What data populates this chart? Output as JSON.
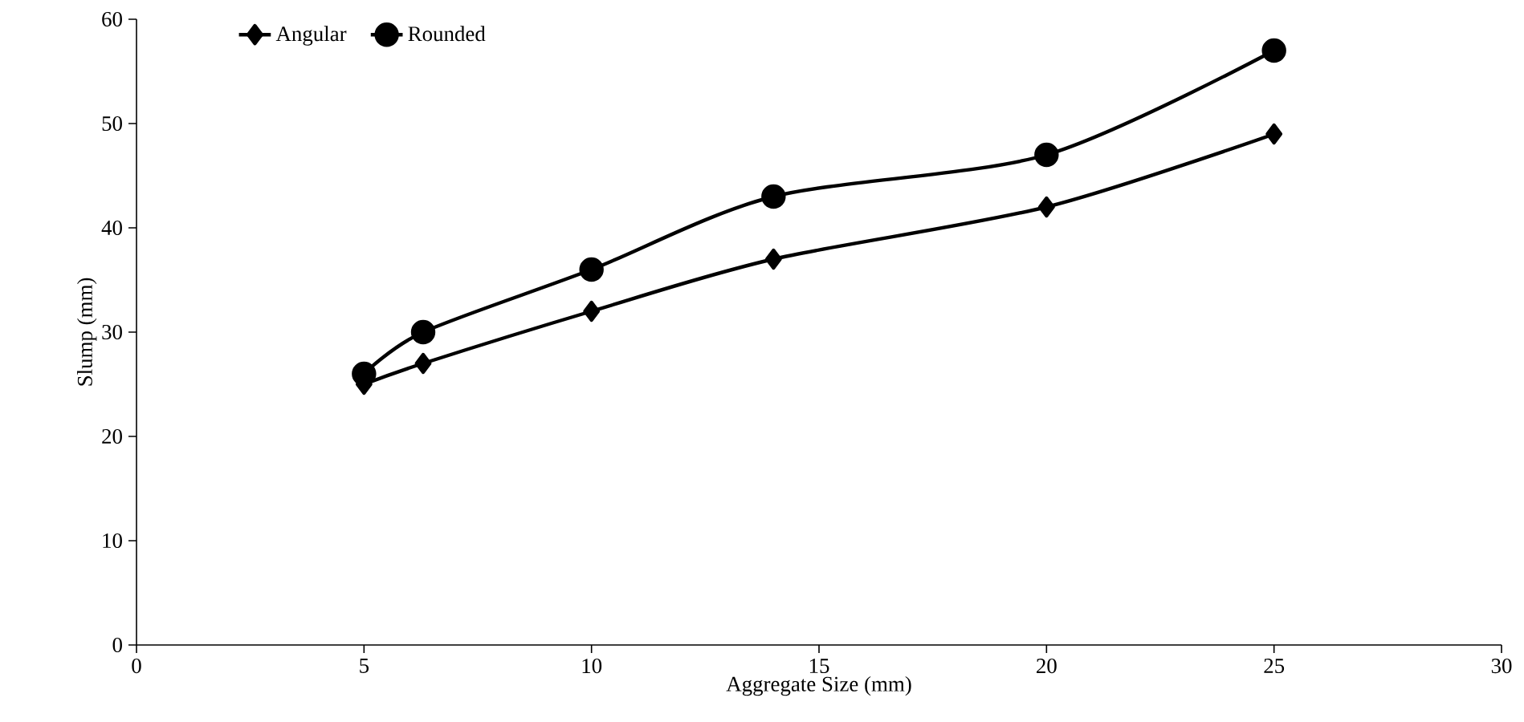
{
  "chart_data": {
    "type": "line",
    "xlabel": "Aggregate Size (mm)",
    "ylabel": "Slump (mm)",
    "xlim": [
      0,
      30
    ],
    "xticks": [
      0,
      5,
      10,
      15,
      20,
      25,
      30
    ],
    "ylim": [
      0,
      60
    ],
    "yticks": [
      0,
      10,
      20,
      30,
      40,
      50,
      60
    ],
    "legend": "top left",
    "grid": false,
    "line_style": "solid",
    "series": [
      {
        "name": "Angular",
        "color": "#000000",
        "marker": "diamond",
        "x": [
          5,
          6.3,
          10,
          14,
          20,
          25
        ],
        "values": [
          25,
          27,
          32,
          37,
          42,
          49
        ]
      },
      {
        "name": "Rounded",
        "color": "#000000",
        "marker": "circle",
        "x": [
          5,
          6.3,
          10,
          14,
          20,
          25
        ],
        "values": [
          26,
          30,
          36,
          43,
          47,
          57
        ]
      }
    ]
  }
}
